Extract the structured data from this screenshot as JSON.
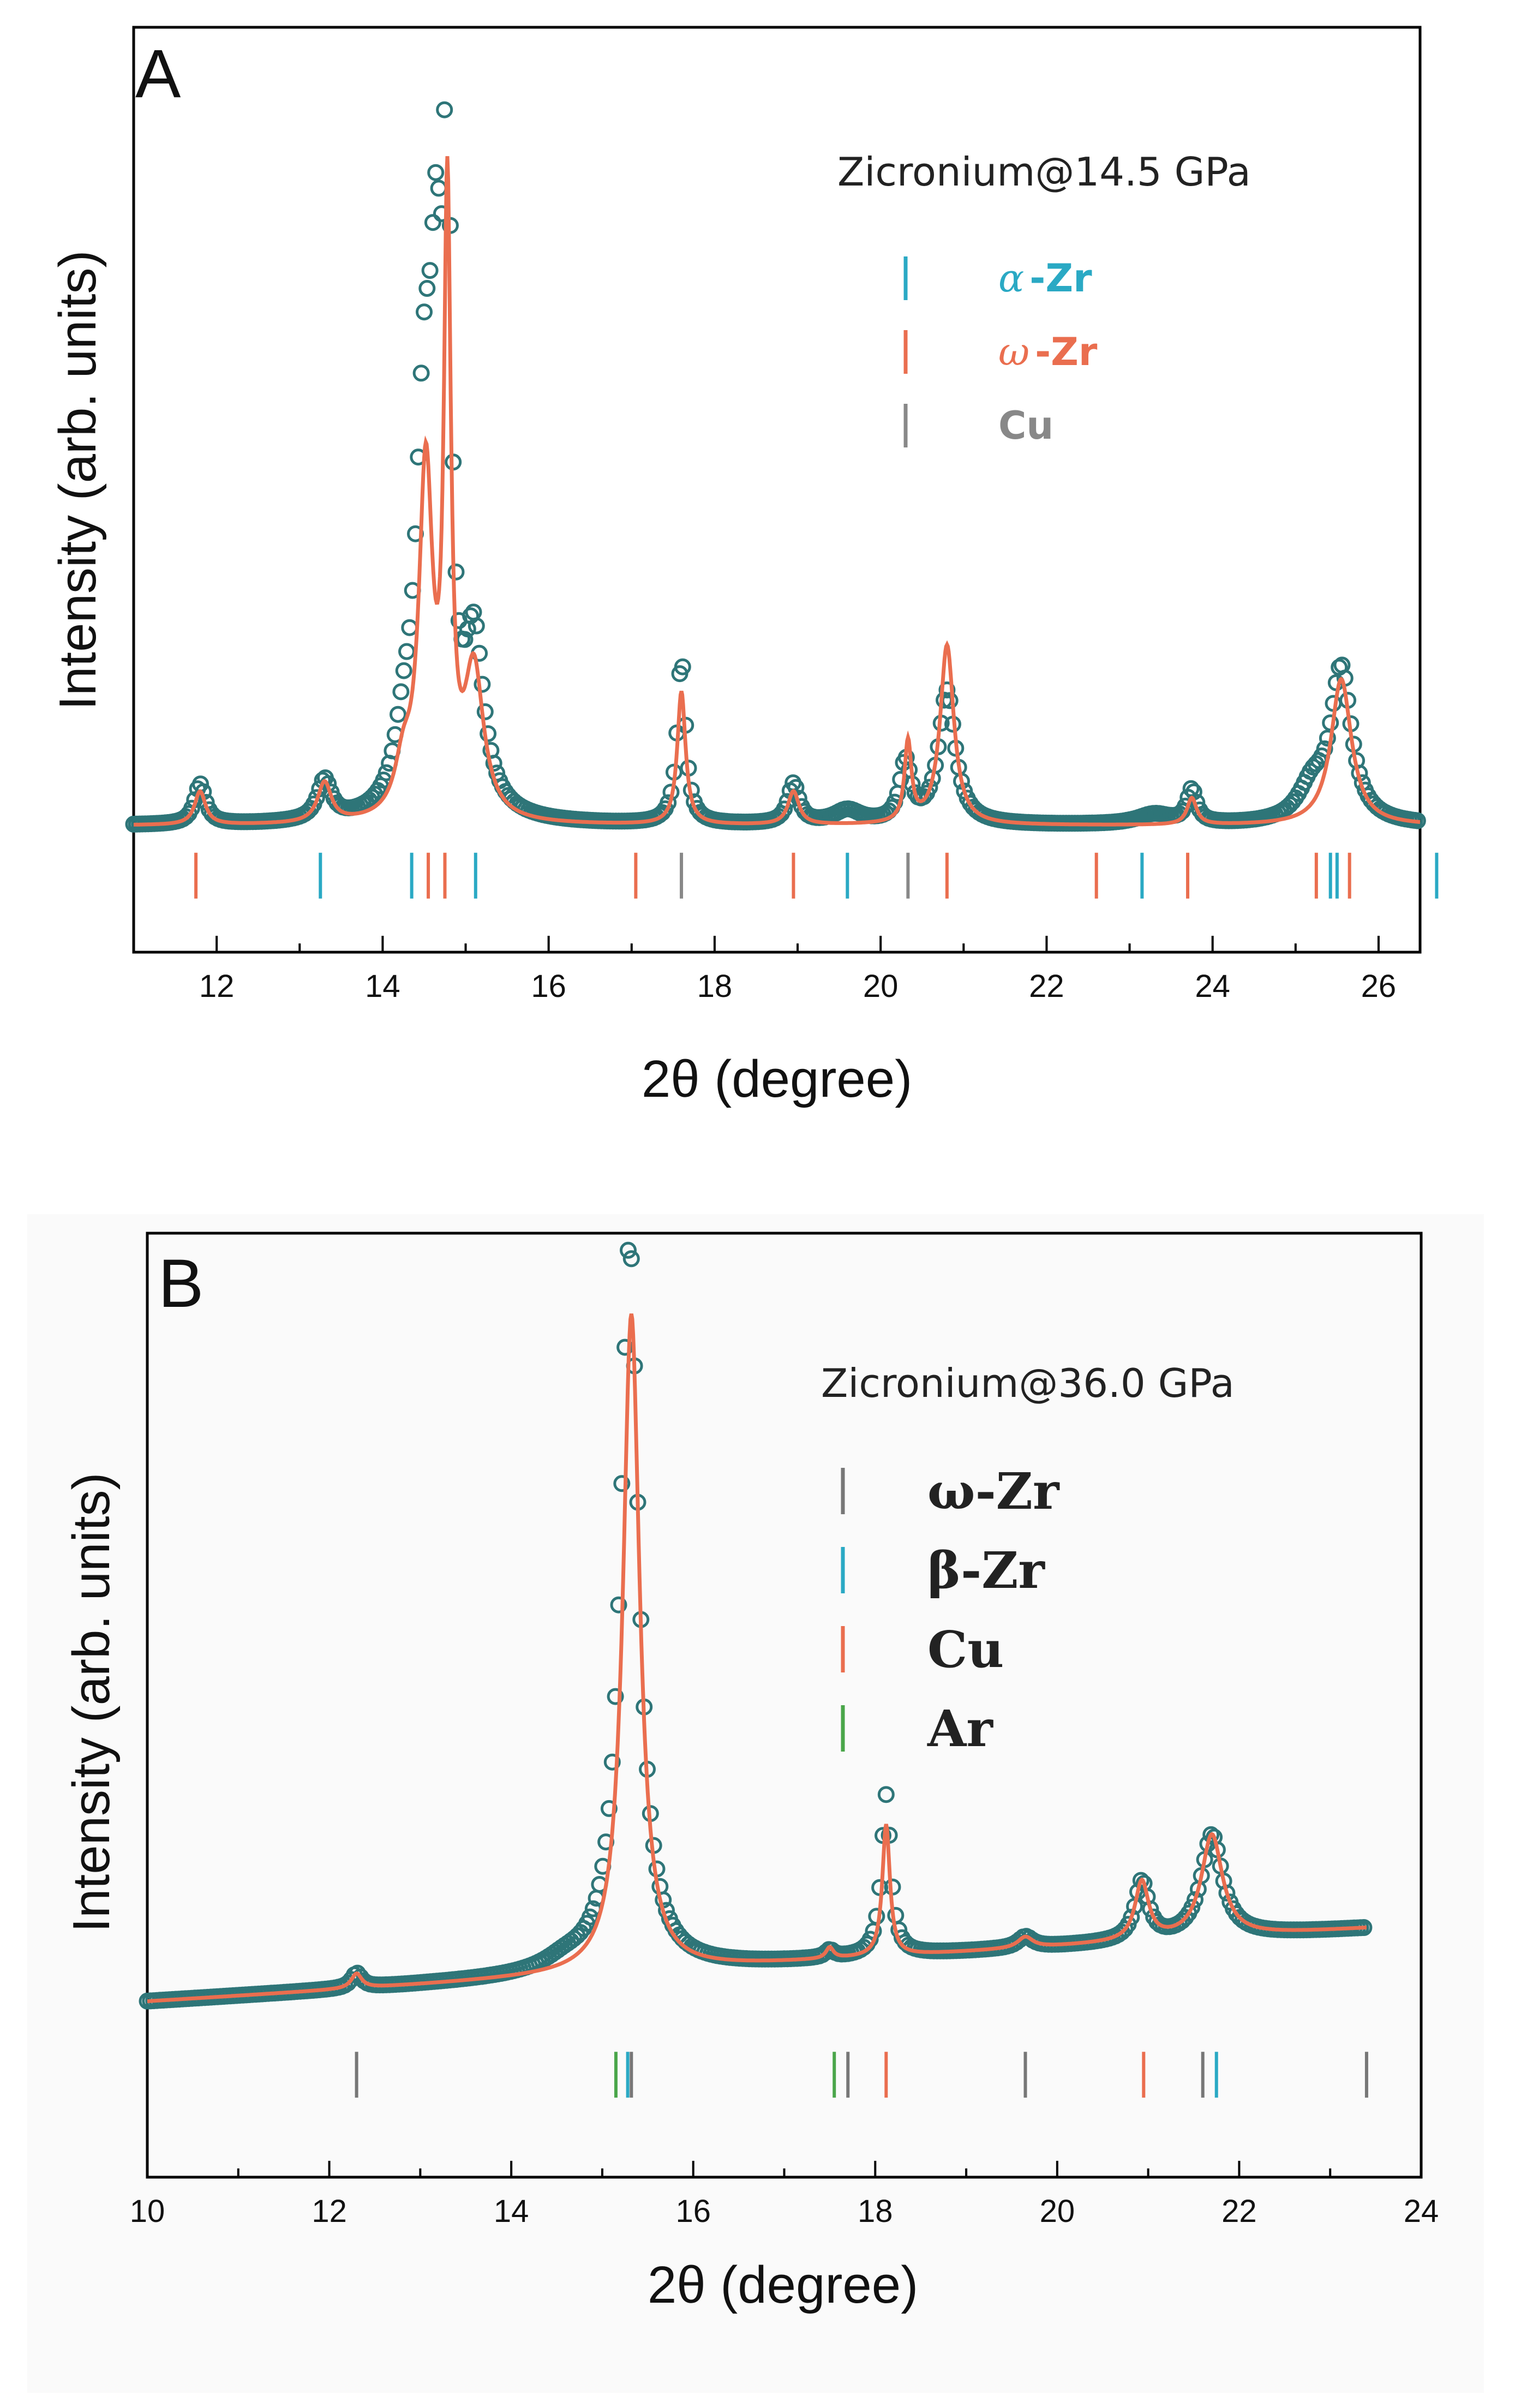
{
  "chart_data": [
    {
      "panel": "A",
      "type": "scatter",
      "title": "Zicronium@14.5 GPa",
      "xlabel": "2θ (degree)",
      "ylabel": "Intensity (arb. units)",
      "xlim": [
        11,
        26.5
      ],
      "ylim": [
        -0.19,
        1.2
      ],
      "xticks": [
        12,
        14,
        16,
        18,
        20,
        22,
        24,
        26
      ],
      "xticklabels": [
        "12",
        "14",
        "16",
        "18",
        "20",
        "22",
        "24",
        "26"
      ],
      "colors": {
        "observed": "#2e7578",
        "fit": "#ea6e4f",
        "alpha_zr": "#2aa9c4",
        "omega_zr": "#ea6e4f",
        "cu": "#888888"
      },
      "observed_curve": {
        "baseline": 0.0,
        "peaks": [
          {
            "center": 11.8,
            "height": 0.06,
            "width": 0.08
          },
          {
            "center": 13.3,
            "height": 0.06,
            "width": 0.1
          },
          {
            "center": 14.25,
            "height": 0.08,
            "width": 0.12
          },
          {
            "center": 14.5,
            "height": 0.55,
            "width": 0.12
          },
          {
            "center": 14.65,
            "height": 0.62,
            "width": 0.09
          },
          {
            "center": 14.78,
            "height": 0.95,
            "width": 0.05
          },
          {
            "center": 15.1,
            "height": 0.25,
            "width": 0.14
          },
          {
            "center": 17.6,
            "height": 0.25,
            "width": 0.06
          },
          {
            "center": 18.95,
            "height": 0.06,
            "width": 0.08
          },
          {
            "center": 19.6,
            "height": 0.02,
            "width": 0.2
          },
          {
            "center": 20.3,
            "height": 0.09,
            "width": 0.08
          },
          {
            "center": 20.8,
            "height": 0.2,
            "width": 0.12
          },
          {
            "center": 23.3,
            "height": 0.015,
            "width": 0.25
          },
          {
            "center": 23.75,
            "height": 0.05,
            "width": 0.07
          },
          {
            "center": 25.2,
            "height": 0.05,
            "width": 0.2
          },
          {
            "center": 25.55,
            "height": 0.23,
            "width": 0.15
          }
        ]
      },
      "fit_curve": {
        "baseline": 0.0,
        "peaks": [
          {
            "center": 11.8,
            "height": 0.05,
            "width": 0.08
          },
          {
            "center": 13.3,
            "height": 0.06,
            "width": 0.1
          },
          {
            "center": 14.25,
            "height": 0.07,
            "width": 0.12
          },
          {
            "center": 14.52,
            "height": 0.52,
            "width": 0.1
          },
          {
            "center": 14.78,
            "height": 0.9,
            "width": 0.05
          },
          {
            "center": 15.1,
            "height": 0.22,
            "width": 0.14
          },
          {
            "center": 17.6,
            "height": 0.2,
            "width": 0.06
          },
          {
            "center": 18.95,
            "height": 0.05,
            "width": 0.08
          },
          {
            "center": 20.33,
            "height": 0.12,
            "width": 0.05
          },
          {
            "center": 20.8,
            "height": 0.27,
            "width": 0.1
          },
          {
            "center": 23.75,
            "height": 0.04,
            "width": 0.07
          },
          {
            "center": 25.55,
            "height": 0.22,
            "width": 0.15
          }
        ]
      },
      "reflection_ticks": {
        "y": -0.075,
        "alpha_zr": [
          13.25,
          14.35,
          15.12,
          19.6,
          23.15,
          25.42,
          25.5,
          26.7
        ],
        "omega_zr": [
          11.75,
          14.55,
          14.75,
          17.05,
          18.95,
          20.8,
          22.6,
          23.7,
          25.25,
          25.65
        ],
        "cu": [
          17.6,
          20.33
        ]
      },
      "legend": [
        {
          "glyph": "α",
          "label": "-Zr",
          "color": "#2aa9c4"
        },
        {
          "glyph": "ω",
          "label": "-Zr",
          "color": "#ea6e4f"
        },
        {
          "glyph": "",
          "label": "Cu",
          "color": "#888888"
        }
      ]
    },
    {
      "panel": "B",
      "type": "scatter",
      "title": "Zicronium@36.0 GPa",
      "xlabel": "2θ (degree)",
      "ylabel": "Intensity (arb. units)",
      "xlim": [
        10,
        24
      ],
      "ylim": [
        -0.24,
        1.05
      ],
      "xticks": [
        10,
        12,
        14,
        16,
        18,
        20,
        22,
        24
      ],
      "xticklabels": [
        "10",
        "12",
        "14",
        "16",
        "18",
        "20",
        "22",
        "24"
      ],
      "colors": {
        "observed": "#2e7578",
        "fit": "#ea6e4f",
        "omega_zr": "#777777",
        "beta_zr": "#2aa9c4",
        "cu": "#ea6e4f",
        "ar": "#4aa64a"
      },
      "observed_curve": {
        "baseline_start": 0.0,
        "baseline_end": 0.1,
        "x_range": [
          10,
          23.4
        ],
        "peaks": [
          {
            "center": 12.3,
            "height": 0.02,
            "width": 0.07
          },
          {
            "center": 14.6,
            "height": 0.015,
            "width": 0.3
          },
          {
            "center": 15.3,
            "height": 1.0,
            "width": 0.12
          },
          {
            "center": 17.5,
            "height": 0.01,
            "width": 0.06
          },
          {
            "center": 18.12,
            "height": 0.22,
            "width": 0.06
          },
          {
            "center": 19.65,
            "height": 0.015,
            "width": 0.1
          },
          {
            "center": 20.93,
            "height": 0.08,
            "width": 0.09
          },
          {
            "center": 21.7,
            "height": 0.14,
            "width": 0.14
          }
        ]
      },
      "fit_curve": {
        "baseline_start": 0.0,
        "baseline_end": 0.1,
        "x_range": [
          10,
          23.4
        ],
        "peaks": [
          {
            "center": 12.3,
            "height": 0.02,
            "width": 0.07
          },
          {
            "center": 15.32,
            "height": 0.9,
            "width": 0.11
          },
          {
            "center": 17.5,
            "height": 0.015,
            "width": 0.05
          },
          {
            "center": 18.12,
            "height": 0.18,
            "width": 0.05
          },
          {
            "center": 19.65,
            "height": 0.015,
            "width": 0.1
          },
          {
            "center": 20.93,
            "height": 0.08,
            "width": 0.09
          },
          {
            "center": 21.7,
            "height": 0.14,
            "width": 0.14
          }
        ]
      },
      "reflection_ticks": {
        "y": -0.1,
        "omega_zr": [
          12.3,
          15.32,
          17.7,
          19.65,
          21.6,
          23.4
        ],
        "beta_zr": [
          15.28,
          21.75
        ],
        "cu": [
          18.12,
          20.95
        ],
        "ar": [
          15.15,
          17.55
        ]
      },
      "legend": [
        {
          "label": "ω-Zr",
          "color": "#777777"
        },
        {
          "label": "β-Zr",
          "color": "#2aa9c4"
        },
        {
          "label": "Cu",
          "color": "#ea6e4f"
        },
        {
          "label": "Ar",
          "color": "#4aa64a"
        }
      ]
    }
  ]
}
